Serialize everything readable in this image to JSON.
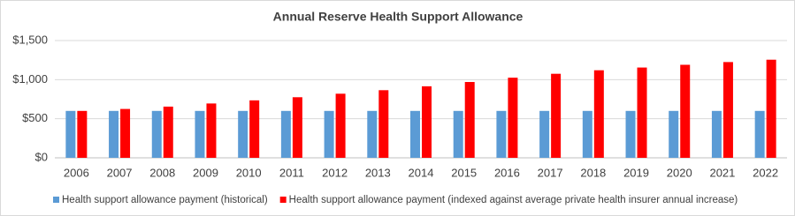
{
  "chart_data": {
    "type": "bar",
    "title": "Annual Reserve Health Support Allowance",
    "categories": [
      "2006",
      "2007",
      "2008",
      "2009",
      "2010",
      "2011",
      "2012",
      "2013",
      "2014",
      "2015",
      "2016",
      "2017",
      "2018",
      "2019",
      "2020",
      "2021",
      "2022"
    ],
    "series": [
      {
        "name": "Health support allowance payment (historical)",
        "color": "#5b9bd5",
        "values": [
          600,
          600,
          600,
          600,
          600,
          600,
          600,
          600,
          600,
          600,
          600,
          600,
          600,
          600,
          600,
          600,
          600
        ]
      },
      {
        "name": "Health support allowance payment (indexed against average private health insurer annual increase)",
        "color": "#ff0000",
        "values": [
          600,
          625,
          655,
          695,
          735,
          775,
          820,
          865,
          915,
          970,
          1025,
          1075,
          1120,
          1155,
          1190,
          1225,
          1255
        ]
      }
    ],
    "ylim": [
      0,
      1500
    ],
    "yticks": [
      {
        "value": 0,
        "label": "$0"
      },
      {
        "value": 500,
        "label": "$500"
      },
      {
        "value": 1000,
        "label": "$1,000"
      },
      {
        "value": 1500,
        "label": "$1,500"
      }
    ],
    "grid": true,
    "legend": "bottom"
  }
}
